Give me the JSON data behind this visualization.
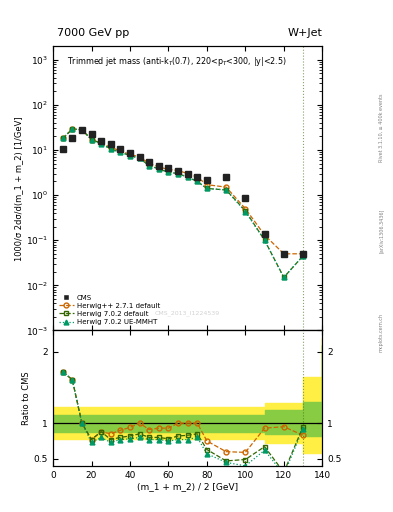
{
  "title_top": "7000 GeV pp",
  "title_right": "W+Jet",
  "ylabel_main": "1000/σ 2dσ/d(m_1 + m_2) [1/GeV]",
  "ylabel_ratio": "Ratio to CMS",
  "xlabel": "(m_1 + m_2) / 2 [GeV]",
  "annotation": "Trimmed jet mass (anti-k$_T$(0.7), 220<p$_T$<300, |y|<2.5)",
  "cms_label": "CMS_2013_I1224539",
  "rivet_label": "Rivet 3.1.10, ≥ 400k events",
  "arxiv_label": "[arXiv:1306.3436]",
  "mcplots_label": "mcplots.cern.ch",
  "cms_x": [
    5,
    10,
    15,
    20,
    25,
    30,
    35,
    40,
    45,
    50,
    55,
    60,
    65,
    70,
    75,
    80,
    90,
    100,
    110,
    120,
    130
  ],
  "cms_y": [
    10.5,
    18.0,
    28.0,
    22.0,
    16.0,
    13.5,
    10.5,
    8.5,
    7.0,
    5.5,
    4.5,
    4.0,
    3.5,
    3.0,
    2.5,
    2.2,
    2.5,
    0.85,
    0.14,
    0.05,
    0.05
  ],
  "hpp_x": [
    5,
    10,
    15,
    20,
    25,
    30,
    35,
    40,
    45,
    50,
    55,
    60,
    65,
    70,
    75,
    80,
    90,
    100,
    110,
    120,
    130
  ],
  "hpp_y": [
    18.0,
    29.0,
    28.0,
    17.0,
    14.0,
    11.5,
    9.5,
    8.0,
    7.0,
    5.0,
    4.2,
    3.7,
    3.5,
    3.0,
    2.5,
    1.7,
    1.5,
    0.5,
    0.13,
    0.05,
    0.05
  ],
  "h702_x": [
    5,
    10,
    15,
    20,
    25,
    30,
    35,
    40,
    45,
    50,
    55,
    60,
    65,
    70,
    75,
    80,
    90,
    100,
    110,
    120,
    130
  ],
  "h702_y": [
    18.0,
    29.0,
    28.0,
    17.0,
    14.0,
    10.5,
    9.0,
    7.5,
    6.5,
    4.5,
    3.8,
    3.2,
    3.0,
    2.5,
    2.0,
    1.4,
    1.3,
    0.45,
    0.1,
    0.015,
    0.045
  ],
  "hue_x": [
    5,
    10,
    15,
    20,
    25,
    30,
    35,
    40,
    45,
    50,
    55,
    60,
    65,
    70,
    75,
    80,
    90,
    100,
    110,
    120,
    130
  ],
  "hue_y": [
    18.0,
    29.0,
    28.0,
    17.0,
    13.5,
    10.5,
    8.8,
    7.5,
    6.5,
    4.5,
    3.8,
    3.2,
    3.0,
    2.5,
    2.0,
    1.4,
    1.3,
    0.43,
    0.1,
    0.015,
    0.045
  ],
  "rx": [
    5,
    10,
    15,
    20,
    25,
    30,
    35,
    40,
    45,
    50,
    55,
    60,
    65,
    70,
    75,
    80,
    90,
    100,
    110,
    120,
    130
  ],
  "r_hpp": [
    1.72,
    1.61,
    1.0,
    0.77,
    0.88,
    0.85,
    0.9,
    0.94,
    1.0,
    0.91,
    0.93,
    0.93,
    1.0,
    1.0,
    1.0,
    0.75,
    0.6,
    0.59,
    0.93,
    0.95,
    0.83
  ],
  "r_h702": [
    1.72,
    1.61,
    1.0,
    0.77,
    0.88,
    0.77,
    0.8,
    0.82,
    0.85,
    0.8,
    0.8,
    0.78,
    0.82,
    0.83,
    0.85,
    0.63,
    0.47,
    0.49,
    0.67,
    0.31,
    0.95
  ],
  "r_hue": [
    1.72,
    1.61,
    1.0,
    0.73,
    0.8,
    0.73,
    0.77,
    0.78,
    0.8,
    0.77,
    0.77,
    0.75,
    0.77,
    0.77,
    0.8,
    0.57,
    0.45,
    0.4,
    0.62,
    0.28,
    0.92
  ],
  "band_x": [
    0,
    10,
    20,
    30,
    40,
    50,
    60,
    70,
    80,
    90,
    100,
    110,
    120,
    130,
    140
  ],
  "band_g_lo": [
    0.88,
    0.88,
    0.88,
    0.88,
    0.88,
    0.88,
    0.88,
    0.88,
    0.88,
    0.88,
    0.88,
    0.85,
    0.85,
    0.82,
    0.82
  ],
  "band_g_hi": [
    1.12,
    1.12,
    1.12,
    1.12,
    1.12,
    1.12,
    1.12,
    1.12,
    1.12,
    1.12,
    1.12,
    1.18,
    1.18,
    1.3,
    2.1
  ],
  "band_y_lo": [
    0.78,
    0.78,
    0.78,
    0.78,
    0.78,
    0.78,
    0.78,
    0.78,
    0.78,
    0.78,
    0.78,
    0.72,
    0.72,
    0.58,
    0.58
  ],
  "band_y_hi": [
    1.22,
    1.22,
    1.22,
    1.22,
    1.22,
    1.22,
    1.22,
    1.22,
    1.22,
    1.22,
    1.22,
    1.28,
    1.28,
    1.65,
    2.2
  ],
  "color_cms": "#222222",
  "color_hpp": "#cc6600",
  "color_h702": "#336600",
  "color_hue": "#009966",
  "color_green": "#88cc44",
  "color_yellow": "#ffee44",
  "xlim": [
    0,
    140
  ],
  "ylim_main": [
    0.001,
    2000
  ],
  "ylim_ratio": [
    0.4,
    2.3
  ]
}
